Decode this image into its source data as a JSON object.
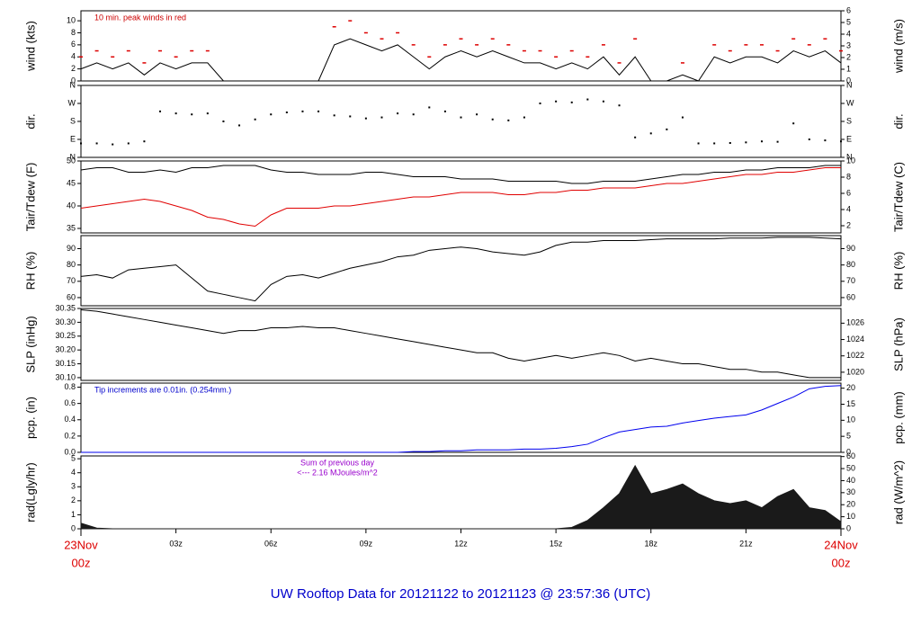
{
  "footer": "UW Rooftop Data for 20121122  to  20121123 @ 23:57:36  (UTC)",
  "chart_data": [
    {
      "type": "line",
      "ylabel": "wind (kts)",
      "y2label": "wind (m/s)",
      "annotation": [
        "10 min. peak winds in red"
      ],
      "annotation_color": "#cc0000",
      "xlim": [
        0,
        24
      ],
      "x": [
        0,
        0.5,
        1,
        1.5,
        2,
        2.5,
        3,
        3.5,
        4,
        4.5,
        5,
        5.5,
        6,
        6.5,
        7,
        7.5,
        8,
        8.5,
        9,
        9.5,
        10,
        10.5,
        11,
        11.5,
        12,
        12.5,
        13,
        13.5,
        14,
        14.5,
        15,
        15.5,
        16,
        16.5,
        17,
        17.5,
        18,
        18.5,
        19,
        19.5,
        20,
        20.5,
        21,
        21.5,
        22,
        22.5,
        23,
        23.5,
        24
      ],
      "ylim": [
        0,
        11.66
      ],
      "yticks": [
        0,
        2,
        4,
        6,
        8,
        10
      ],
      "y2lim": [
        0,
        6
      ],
      "y2ticks": [
        0,
        1,
        2,
        3,
        4,
        5,
        6
      ],
      "series": [
        {
          "style": "line",
          "color": "#000000",
          "values": [
            2,
            3,
            2,
            3,
            1,
            3,
            2,
            3,
            3,
            0,
            0,
            0,
            0,
            0,
            0,
            0,
            6,
            7,
            6,
            5,
            6,
            4,
            2,
            4,
            5,
            4,
            5,
            4,
            3,
            3,
            2,
            3,
            2,
            4,
            1,
            4,
            0,
            0,
            1,
            0,
            4,
            3,
            4,
            4,
            3,
            5,
            4,
            5,
            3
          ]
        },
        {
          "style": "dash",
          "color": "#dd0000",
          "values": [
            4,
            5,
            4,
            5,
            3,
            5,
            4,
            5,
            5,
            null,
            null,
            null,
            null,
            null,
            null,
            null,
            9,
            10,
            8,
            7,
            8,
            6,
            4,
            6,
            7,
            6,
            7,
            6,
            5,
            5,
            4,
            5,
            4,
            6,
            3,
            7,
            null,
            null,
            3,
            null,
            6,
            5,
            6,
            6,
            5,
            7,
            6,
            7,
            5
          ]
        }
      ]
    },
    {
      "type": "scatter",
      "ylabel": "dir.",
      "y2label": "dir.",
      "xlim": [
        0,
        24
      ],
      "x": [
        0,
        0.5,
        1,
        1.5,
        2,
        2.5,
        3,
        3.5,
        4,
        4.5,
        5,
        5.5,
        6,
        6.5,
        7,
        7.5,
        8,
        8.5,
        9,
        9.5,
        10,
        10.5,
        11,
        11.5,
        12,
        12.5,
        13,
        13.5,
        14,
        14.5,
        15,
        15.5,
        16,
        16.5,
        17,
        17.5,
        18,
        18.5,
        19,
        19.5,
        20,
        20.5,
        21,
        21.5,
        22,
        22.5,
        23,
        23.5,
        24
      ],
      "ylim": [
        0,
        360
      ],
      "yticks": [
        {
          "value": 0,
          "label": "N"
        },
        {
          "value": 90,
          "label": "E"
        },
        {
          "value": 180,
          "label": "S"
        },
        {
          "value": 270,
          "label": "W"
        },
        {
          "value": 360,
          "label": "N"
        }
      ],
      "y2lim": [
        0,
        360
      ],
      "y2ticks": [
        {
          "value": 0,
          "label": "N"
        },
        {
          "value": 90,
          "label": "E"
        },
        {
          "value": 180,
          "label": "S"
        },
        {
          "value": 270,
          "label": "W"
        },
        {
          "value": 360,
          "label": "N"
        }
      ],
      "series": [
        {
          "style": "dot",
          "color": "#000000",
          "values": [
            70,
            70,
            65,
            70,
            80,
            230,
            220,
            215,
            220,
            180,
            160,
            190,
            215,
            225,
            230,
            230,
            210,
            205,
            195,
            200,
            220,
            215,
            250,
            230,
            200,
            215,
            190,
            185,
            200,
            270,
            280,
            275,
            290,
            280,
            260,
            100,
            120,
            140,
            200,
            70,
            70,
            72,
            75,
            80,
            78,
            170,
            90,
            85,
            80
          ]
        }
      ]
    },
    {
      "type": "line",
      "ylabel": "Tair/Tdew (F)",
      "y2label": "Tair/Tdew (C)",
      "xlim": [
        0,
        24
      ],
      "x": [
        0,
        0.5,
        1,
        1.5,
        2,
        2.5,
        3,
        3.5,
        4,
        4.5,
        5,
        5.5,
        6,
        6.5,
        7,
        7.5,
        8,
        8.5,
        9,
        9.5,
        10,
        10.5,
        11,
        11.5,
        12,
        12.5,
        13,
        13.5,
        14,
        14.5,
        15,
        15.5,
        16,
        16.5,
        17,
        17.5,
        18,
        18.5,
        19,
        19.5,
        20,
        20.5,
        21,
        21.5,
        22,
        22.5,
        23,
        23.5,
        24
      ],
      "ylim": [
        34,
        50
      ],
      "yticks": [
        35,
        40,
        45,
        50
      ],
      "y2lim": [
        1.11,
        10
      ],
      "y2ticks": [
        2,
        4,
        6,
        8,
        10
      ],
      "series": [
        {
          "style": "line",
          "color": "#000000",
          "values": [
            48,
            48.5,
            48.5,
            47.5,
            47.5,
            48,
            47.5,
            48.5,
            48.5,
            49,
            49,
            49,
            48,
            47.5,
            47.5,
            47,
            47,
            47,
            47.5,
            47.5,
            47,
            46.5,
            46.5,
            46.5,
            46,
            46,
            46,
            45.5,
            45.5,
            45.5,
            45.5,
            45,
            45,
            45.5,
            45.5,
            45.5,
            46,
            46.5,
            47,
            47,
            47.5,
            47.5,
            48,
            48,
            48.5,
            48.5,
            48.5,
            49,
            49
          ]
        },
        {
          "style": "line",
          "color": "#e00000",
          "values": [
            39.5,
            40,
            40.5,
            41,
            41.5,
            41,
            40,
            39,
            37.5,
            37,
            36,
            35.5,
            38,
            39.5,
            39.5,
            39.5,
            40,
            40,
            40.5,
            41,
            41.5,
            42,
            42,
            42.5,
            43,
            43,
            43,
            42.5,
            42.5,
            43,
            43,
            43.5,
            43.5,
            44,
            44,
            44,
            44.5,
            45,
            45,
            45.5,
            46,
            46.5,
            47,
            47,
            47.5,
            47.5,
            48,
            48.5,
            48.5
          ]
        }
      ]
    },
    {
      "type": "line",
      "ylabel": "RH (%)",
      "y2label": "RH (%)",
      "xlim": [
        0,
        24
      ],
      "x": [
        0,
        0.5,
        1,
        1.5,
        2,
        2.5,
        3,
        3.5,
        4,
        4.5,
        5,
        5.5,
        6,
        6.5,
        7,
        7.5,
        8,
        8.5,
        9,
        9.5,
        10,
        10.5,
        11,
        11.5,
        12,
        12.5,
        13,
        13.5,
        14,
        14.5,
        15,
        15.5,
        16,
        16.5,
        17,
        17.5,
        18,
        18.5,
        19,
        19.5,
        20,
        20.5,
        21,
        21.5,
        22,
        22.5,
        23,
        23.5,
        24
      ],
      "ylim": [
        55,
        98
      ],
      "yticks": [
        60,
        70,
        80,
        90
      ],
      "y2lim": [
        55,
        98
      ],
      "y2ticks": [
        60,
        70,
        80,
        90
      ],
      "series": [
        {
          "style": "line",
          "color": "#000000",
          "values": [
            73,
            74,
            72,
            77,
            78,
            79,
            80,
            72,
            64,
            62,
            60,
            58,
            68,
            73,
            74,
            72,
            75,
            78,
            80,
            82,
            85,
            86,
            89,
            90,
            91,
            90,
            88,
            87,
            86,
            88,
            92,
            94,
            94,
            95,
            95,
            95,
            95.5,
            96,
            96,
            96,
            96,
            96.5,
            96.5,
            96.5,
            97,
            97,
            97,
            96.5,
            96
          ]
        }
      ]
    },
    {
      "type": "line",
      "ylabel": "SLP (inHg)",
      "y2label": "SLP (hPa)",
      "xlim": [
        0,
        24
      ],
      "x": [
        0,
        0.5,
        1,
        1.5,
        2,
        2.5,
        3,
        3.5,
        4,
        4.5,
        5,
        5.5,
        6,
        6.5,
        7,
        7.5,
        8,
        8.5,
        9,
        9.5,
        10,
        10.5,
        11,
        11.5,
        12,
        12.5,
        13,
        13.5,
        14,
        14.5,
        15,
        15.5,
        16,
        16.5,
        17,
        17.5,
        18,
        18.5,
        19,
        19.5,
        20,
        20.5,
        21,
        21.5,
        22,
        22.5,
        23,
        23.5,
        24
      ],
      "ylim": [
        30.09,
        30.35
      ],
      "yticks": [
        {
          "value": 30.1,
          "label": "30.10"
        },
        30.15,
        {
          "value": 30.2,
          "label": "30.20"
        },
        30.25,
        {
          "value": 30.3,
          "label": "30.30"
        },
        30.35
      ],
      "y2lim": [
        1019.0,
        1027.8
      ],
      "y2ticks": [
        1020,
        1022,
        1024,
        1026
      ],
      "series": [
        {
          "style": "line",
          "color": "#000000",
          "values": [
            30.345,
            30.34,
            30.33,
            30.32,
            30.31,
            30.3,
            30.29,
            30.28,
            30.27,
            30.26,
            30.27,
            30.27,
            30.28,
            30.28,
            30.285,
            30.28,
            30.28,
            30.27,
            30.26,
            30.25,
            30.24,
            30.23,
            30.22,
            30.21,
            30.2,
            30.19,
            30.19,
            30.17,
            30.16,
            30.17,
            30.18,
            30.17,
            30.18,
            30.19,
            30.18,
            30.16,
            30.17,
            30.16,
            30.15,
            30.15,
            30.14,
            30.13,
            30.13,
            30.12,
            30.12,
            30.11,
            30.1,
            30.1,
            30.1
          ]
        }
      ]
    },
    {
      "type": "line",
      "ylabel": "pcp. (in)",
      "y2label": "pcp. (mm)",
      "annotation": [
        "Tip increments are 0.01in. (0.254mm.)"
      ],
      "annotation_color": "#0000cc",
      "xlim": [
        0,
        24
      ],
      "x": [
        0,
        0.5,
        1,
        1.5,
        2,
        2.5,
        3,
        3.5,
        4,
        4.5,
        5,
        5.5,
        6,
        6.5,
        7,
        7.5,
        8,
        8.5,
        9,
        9.5,
        10,
        10.5,
        11,
        11.5,
        12,
        12.5,
        13,
        13.5,
        14,
        14.5,
        15,
        15.5,
        16,
        16.5,
        17,
        17.5,
        18,
        18.5,
        19,
        19.5,
        20,
        20.5,
        21,
        21.5,
        22,
        22.5,
        23,
        23.5,
        24
      ],
      "ylim": [
        0,
        0.85
      ],
      "yticks": [
        {
          "value": 0,
          "label": "0.0"
        },
        0.2,
        0.4,
        0.6,
        0.8
      ],
      "y2lim": [
        0,
        21.59
      ],
      "y2ticks": [
        0,
        5,
        10,
        15,
        20
      ],
      "series": [
        {
          "style": "line",
          "color": "#0000ee",
          "values": [
            0,
            0,
            0,
            0,
            0,
            0,
            0,
            0,
            0,
            0,
            0,
            0,
            0,
            0,
            0,
            0,
            0,
            0,
            0,
            0,
            0,
            0.01,
            0.01,
            0.02,
            0.02,
            0.03,
            0.03,
            0.03,
            0.04,
            0.04,
            0.05,
            0.07,
            0.1,
            0.18,
            0.25,
            0.28,
            0.31,
            0.32,
            0.36,
            0.39,
            0.42,
            0.44,
            0.46,
            0.52,
            0.6,
            0.68,
            0.78,
            0.81,
            0.82
          ]
        }
      ]
    },
    {
      "type": "area",
      "ylabel": "rad(Lgly/hr)",
      "y2label": "rad (W/m^2)",
      "annotation": [
        "Sum of previous day",
        "<--- 2.16 MJoules/m^2"
      ],
      "annotation_color": "#9900cc",
      "xlim": [
        0,
        24
      ],
      "x": [
        0,
        0.5,
        1,
        1.5,
        2,
        2.5,
        3,
        3.5,
        4,
        4.5,
        5,
        5.5,
        6,
        6.5,
        7,
        7.5,
        8,
        8.5,
        9,
        9.5,
        10,
        10.5,
        11,
        11.5,
        12,
        12.5,
        13,
        13.5,
        14,
        14.5,
        15,
        15.5,
        16,
        16.5,
        17,
        17.5,
        18,
        18.5,
        19,
        19.5,
        20,
        20.5,
        21,
        21.5,
        22,
        22.5,
        23,
        23.5,
        24
      ],
      "ylim": [
        0,
        5.2
      ],
      "yticks": [
        0,
        1,
        2,
        3,
        4,
        5
      ],
      "y2lim": [
        0,
        60.5
      ],
      "y2ticks": [
        0,
        10,
        20,
        30,
        40,
        50,
        60
      ],
      "xticks": [
        {
          "value": 3,
          "label": "03z"
        },
        {
          "value": 6,
          "label": "06z"
        },
        {
          "value": 9,
          "label": "09z"
        },
        {
          "value": 12,
          "label": "12z"
        },
        {
          "value": 15,
          "label": "15z"
        },
        {
          "value": 18,
          "label": "18z"
        },
        {
          "value": 21,
          "label": "21z"
        }
      ],
      "start_label": [
        "23Nov",
        "00z"
      ],
      "end_label": [
        "24Nov",
        "00z"
      ],
      "edge_label_color": "#dd0000",
      "series": [
        {
          "style": "area",
          "color": "#1a1a1a",
          "values": [
            0.4,
            0.05,
            0,
            0,
            0,
            0,
            0,
            0,
            0,
            0,
            0,
            0,
            0,
            0,
            0,
            0,
            0,
            0,
            0,
            0,
            0,
            0,
            0,
            0,
            0,
            0,
            0,
            0,
            0,
            0,
            0,
            0.1,
            0.6,
            1.5,
            2.5,
            4.5,
            2.5,
            2.8,
            3.2,
            2.5,
            2,
            1.8,
            2,
            1.5,
            2.3,
            2.8,
            1.5,
            1.3,
            0.5
          ]
        }
      ]
    }
  ]
}
